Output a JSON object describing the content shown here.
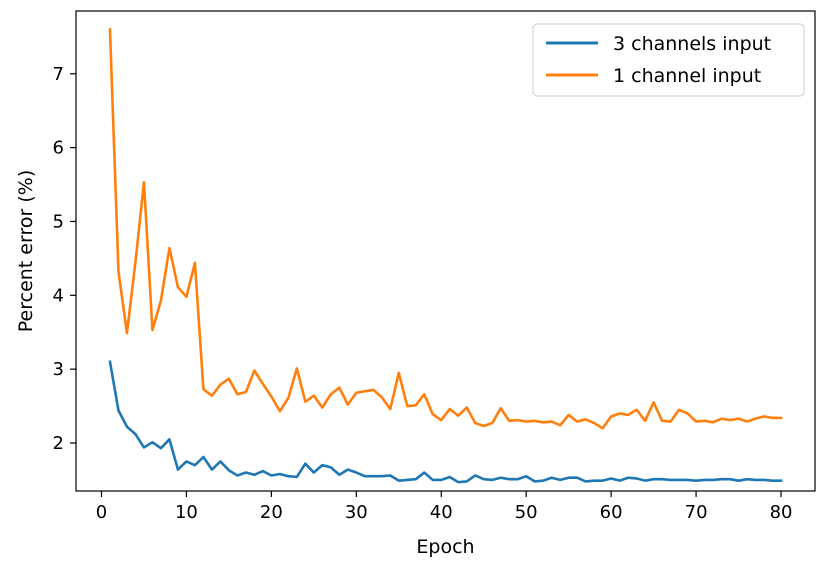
{
  "chart_data": {
    "type": "line",
    "title": "",
    "xlabel": "Epoch",
    "ylabel": "Percent error (%)",
    "xlim": [
      -3,
      84
    ],
    "ylim": [
      1.35,
      7.85
    ],
    "xticks": [
      0,
      10,
      20,
      30,
      40,
      50,
      60,
      70,
      80
    ],
    "yticks": [
      2,
      3,
      4,
      5,
      6,
      7
    ],
    "grid": false,
    "legend": "top-right",
    "x": [
      1,
      2,
      3,
      4,
      5,
      6,
      7,
      8,
      9,
      10,
      11,
      12,
      13,
      14,
      15,
      16,
      17,
      18,
      19,
      20,
      21,
      22,
      23,
      24,
      25,
      26,
      27,
      28,
      29,
      30,
      31,
      32,
      33,
      34,
      35,
      36,
      37,
      38,
      39,
      40,
      41,
      42,
      43,
      44,
      45,
      46,
      47,
      48,
      49,
      50,
      51,
      52,
      53,
      54,
      55,
      56,
      57,
      58,
      59,
      60,
      61,
      62,
      63,
      64,
      65,
      66,
      67,
      68,
      69,
      70,
      71,
      72,
      73,
      74,
      75,
      76,
      77,
      78,
      79,
      80
    ],
    "series": [
      {
        "name": "3 channels input",
        "color": "#1f77b4",
        "values": [
          3.1,
          2.44,
          2.22,
          2.12,
          1.94,
          2.01,
          1.93,
          2.05,
          1.64,
          1.75,
          1.7,
          1.81,
          1.64,
          1.75,
          1.63,
          1.56,
          1.6,
          1.57,
          1.62,
          1.56,
          1.58,
          1.55,
          1.54,
          1.72,
          1.6,
          1.7,
          1.67,
          1.57,
          1.64,
          1.6,
          1.55,
          1.55,
          1.55,
          1.56,
          1.49,
          1.5,
          1.51,
          1.6,
          1.5,
          1.5,
          1.54,
          1.47,
          1.48,
          1.56,
          1.51,
          1.5,
          1.53,
          1.51,
          1.51,
          1.55,
          1.48,
          1.49,
          1.53,
          1.5,
          1.53,
          1.53,
          1.48,
          1.49,
          1.49,
          1.52,
          1.49,
          1.53,
          1.52,
          1.49,
          1.51,
          1.51,
          1.5,
          1.5,
          1.5,
          1.49,
          1.5,
          1.5,
          1.51,
          1.51,
          1.49,
          1.51,
          1.5,
          1.5,
          1.49,
          1.49
        ]
      },
      {
        "name": "1 channel input",
        "color": "#ff7f0e",
        "values": [
          7.6,
          4.32,
          3.49,
          4.45,
          5.53,
          3.53,
          3.93,
          4.64,
          4.11,
          3.98,
          4.44,
          2.73,
          2.64,
          2.79,
          2.87,
          2.66,
          2.69,
          2.98,
          2.8,
          2.63,
          2.43,
          2.61,
          3.01,
          2.56,
          2.64,
          2.48,
          2.66,
          2.75,
          2.52,
          2.68,
          2.7,
          2.72,
          2.62,
          2.46,
          2.95,
          2.5,
          2.51,
          2.66,
          2.39,
          2.31,
          2.46,
          2.37,
          2.48,
          2.27,
          2.23,
          2.27,
          2.47,
          2.3,
          2.31,
          2.29,
          2.3,
          2.28,
          2.29,
          2.24,
          2.38,
          2.29,
          2.32,
          2.27,
          2.2,
          2.36,
          2.4,
          2.38,
          2.45,
          2.3,
          2.55,
          2.3,
          2.29,
          2.45,
          2.4,
          2.29,
          2.3,
          2.28,
          2.33,
          2.31,
          2.33,
          2.29,
          2.33,
          2.36,
          2.34,
          2.34
        ]
      }
    ]
  }
}
